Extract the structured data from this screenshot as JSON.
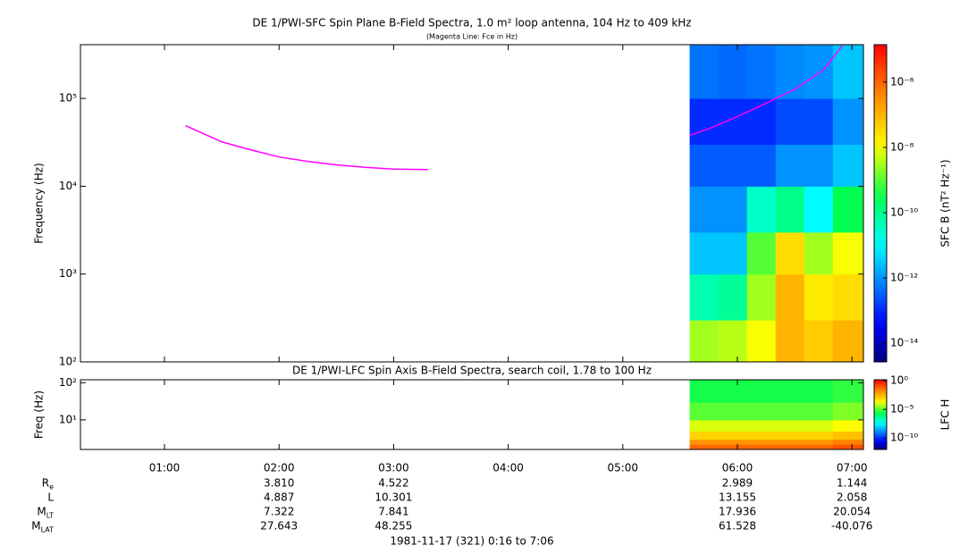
{
  "chart_data": [
    {
      "type": "spectrogram",
      "title": "DE 1/PWI-SFC  Spin Plane B-Field Spectra, 1.0 m² loop antenna, 104 Hz to 409 kHz",
      "subtitle": "(Magenta Line: Fce in Hz)",
      "ylabel": "Frequency (Hz)",
      "xlim": [
        "00:16",
        "07:06"
      ],
      "xticks": [
        "01:00",
        "02:00",
        "03:00",
        "04:00",
        "05:00",
        "06:00",
        "07:00"
      ],
      "yscale": "log",
      "ylim": [
        100,
        409000
      ],
      "yticks": [
        {
          "value": 100,
          "label": "10²"
        },
        {
          "value": 1000,
          "label": "10³"
        },
        {
          "value": 10000,
          "label": "10⁴"
        },
        {
          "value": 100000,
          "label": "10⁵"
        }
      ],
      "x_edges": [
        "05:35",
        "05:50",
        "06:05",
        "06:20",
        "06:35",
        "06:50",
        "07:06"
      ],
      "y_edges": [
        100,
        300,
        1000,
        3000,
        10000,
        30000,
        100000,
        409000
      ],
      "values": [
        [
          3e-09,
          4e-09,
          1e-08,
          1e-07,
          5e-08,
          1e-07
        ],
        [
          5e-11,
          8e-11,
          3e-09,
          1e-07,
          2e-08,
          3e-08
        ],
        [
          3e-12,
          3e-12,
          1e-09,
          3e-08,
          3e-09,
          1e-08
        ],
        [
          1e-12,
          1e-12,
          3e-11,
          1e-10,
          1e-11,
          3e-10
        ],
        [
          3e-13,
          3e-13,
          3e-13,
          1e-12,
          1e-12,
          3e-12
        ],
        [
          1e-13,
          1e-13,
          1e-13,
          2e-13,
          2e-13,
          1e-12
        ],
        [
          5e-13,
          4e-13,
          5e-13,
          8e-13,
          1e-12,
          3e-12
        ]
      ],
      "colormap": "jet",
      "fce_line": {
        "color": "#ff00ff",
        "x": [
          "01:11",
          "01:20",
          "01:30",
          "01:45",
          "02:00",
          "02:15",
          "02:30",
          "02:45",
          "03:00",
          "03:18",
          "04:30",
          "05:35",
          "05:45",
          "06:00",
          "06:15",
          "06:30",
          "06:45",
          "06:55"
        ],
        "values": [
          49000,
          40000,
          32000,
          26000,
          21500,
          19200,
          17500,
          16400,
          15700,
          15500,
          null,
          38000,
          45000,
          62000,
          88000,
          127000,
          210000,
          400000
        ]
      },
      "colorbar": {
        "label": "SFC B (nT² Hz⁻¹)",
        "scale": "log",
        "lim": [
          2.7e-15,
          1.4e-05
        ],
        "ticks": [
          {
            "value": 1e-14,
            "label": "10⁻¹⁴"
          },
          {
            "value": 1e-12,
            "label": "10⁻¹²"
          },
          {
            "value": 1e-10,
            "label": "10⁻¹⁰"
          },
          {
            "value": 1e-08,
            "label": "10⁻⁸"
          },
          {
            "value": 1e-06,
            "label": "10⁻⁶"
          }
        ]
      }
    },
    {
      "type": "spectrogram",
      "title": "DE 1/PWI-LFC  Spin Axis B-Field Spectra, search coil, 1.78 to 100 Hz",
      "ylabel": "Freq (Hz)",
      "xlim": [
        "00:16",
        "07:06"
      ],
      "xticks": [
        "01:00",
        "02:00",
        "03:00",
        "04:00",
        "05:00",
        "06:00",
        "07:00"
      ],
      "yscale": "log",
      "ylim": [
        1.6,
        120
      ],
      "yticks": [
        {
          "value": 10,
          "label": "10¹"
        },
        {
          "value": 100,
          "label": "10²"
        }
      ],
      "x_edges": [
        "05:35",
        "05:50",
        "06:05",
        "06:20",
        "06:35",
        "06:50",
        "07:06"
      ],
      "y_edges": [
        1.6,
        2.2,
        3,
        5,
        10,
        30,
        120
      ],
      "values": [
        [
          0.05,
          0.05,
          0.05,
          0.05,
          0.05,
          0.1
        ],
        [
          0.01,
          0.01,
          0.01,
          0.01,
          0.01,
          0.02
        ],
        [
          0.001,
          0.001,
          0.001,
          0.001,
          0.001,
          0.002
        ],
        [
          0.0001,
          0.0001,
          0.0001,
          0.0001,
          0.0001,
          0.0002
        ],
        [
          1e-05,
          1e-05,
          1e-05,
          1e-05,
          1e-05,
          2e-05
        ],
        [
          3e-06,
          3e-06,
          3e-06,
          3e-06,
          3e-06,
          5e-06
        ]
      ],
      "colormap": "jet",
      "colorbar": {
        "label": "LFC H",
        "scale": "log",
        "lim": [
          1e-12,
          1.5
        ],
        "ticks": [
          {
            "value": 1e-10,
            "label": "10⁻¹⁰"
          },
          {
            "value": 1e-05,
            "label": "10⁻⁵"
          },
          {
            "value": 1,
            "label": "10⁰"
          }
        ]
      }
    }
  ],
  "ephemeris": {
    "x": [
      "02:00",
      "03:00",
      "06:00",
      "07:00"
    ],
    "rows": [
      {
        "name": "R",
        "sub": "e",
        "values": [
          3.81,
          4.522,
          2.989,
          1.144
        ],
        "value_labels": [
          "3.810",
          "4.522",
          "2.989",
          "1.144"
        ]
      },
      {
        "name": "L",
        "values": [
          4.887,
          10.301,
          13.155,
          2.058
        ]
      },
      {
        "name": "M",
        "sub": "LT",
        "values": [
          7.322,
          7.841,
          17.936,
          20.054
        ]
      },
      {
        "name": "M",
        "sub": "LAT",
        "values": [
          27.643,
          48.255,
          61.528,
          -40.076
        ]
      }
    ]
  },
  "footer": "1981-11-17 (321) 0:16 to 7:06"
}
